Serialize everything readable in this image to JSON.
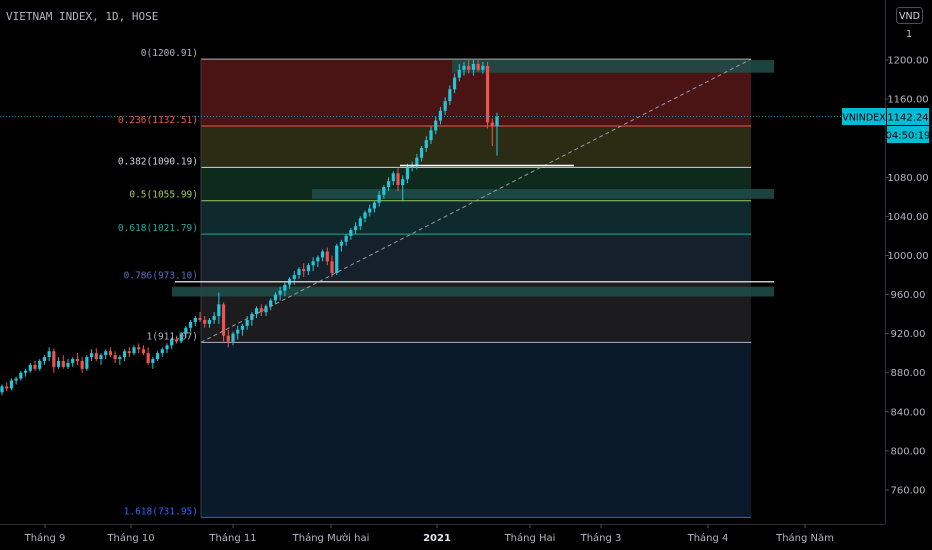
{
  "header": {
    "symbol_title": "VIETNAM INDEX, 1D, HOSE",
    "currency": "VND",
    "scale_mode": "1"
  },
  "badges": {
    "symbol": "VNINDEX",
    "price": "1142.24",
    "countdown": "04:50:19"
  },
  "fib_labels": [
    {
      "text": "0(1200.91)",
      "value": 1200.91,
      "color": "#b2b5be"
    },
    {
      "text": "0.236(1132.51)",
      "value": 1132.51,
      "color": "#ef5350"
    },
    {
      "text": "0.382(1090.19)",
      "value": 1090.19,
      "color": "#d1d4dc"
    },
    {
      "text": "0.5(1055.99)",
      "value": 1055.99,
      "color": "#9ccc65"
    },
    {
      "text": "0.618(1021.79)",
      "value": 1021.79,
      "color": "#26a69a"
    },
    {
      "text": "0.786(973.10)",
      "value": 973.1,
      "color": "#5c6bc0"
    },
    {
      "text": "1(911.07)",
      "value": 911.07,
      "color": "#b2b5be"
    },
    {
      "text": "1.618(731.95)",
      "value": 731.95,
      "color": "#2962ff"
    }
  ],
  "colors": {
    "up": "#26c6da",
    "down": "#ef5350",
    "zone_red": "#4a1414",
    "zone_yellow": "#2c2c14",
    "zone_green": "#0e2a1c",
    "zone_teal": "#0f2a2c",
    "zone_slate": "#15202a",
    "zone_gray": "#1c1c1e",
    "zone_blue": "#0b1a2a",
    "teal_box": "#1e4d4a"
  },
  "chart_data": {
    "type": "candlestick",
    "yaxis_ticks": [
      1200,
      1160,
      1120,
      1080,
      1040,
      1000,
      960,
      920,
      880,
      840,
      800,
      760
    ],
    "ylim": [
      720,
      1225
    ],
    "xaxis_ticks": [
      {
        "label": "Tháng 9",
        "bold": false
      },
      {
        "label": "Tháng 10",
        "bold": false
      },
      {
        "label": "Tháng 11",
        "bold": false
      },
      {
        "label": "Tháng Mười hai",
        "bold": false
      },
      {
        "label": "2021",
        "bold": true
      },
      {
        "label": "Tháng Hai",
        "bold": false
      },
      {
        "label": "Tháng 3",
        "bold": false
      },
      {
        "label": "Tháng 4",
        "bold": false
      },
      {
        "label": "Tháng Năm",
        "bold": false
      }
    ],
    "fib_levels": [
      1200.91,
      1132.51,
      1090.19,
      1055.99,
      1021.79,
      973.1,
      911.07,
      731.95
    ],
    "candles": [
      [
        860,
        868,
        857,
        866
      ],
      [
        866,
        870,
        861,
        864
      ],
      [
        864,
        874,
        862,
        872
      ],
      [
        872,
        876,
        868,
        874
      ],
      [
        874,
        882,
        872,
        880
      ],
      [
        880,
        884,
        876,
        882
      ],
      [
        882,
        890,
        880,
        888
      ],
      [
        888,
        892,
        882,
        884
      ],
      [
        884,
        894,
        882,
        892
      ],
      [
        892,
        898,
        888,
        896
      ],
      [
        896,
        906,
        892,
        902
      ],
      [
        902,
        905,
        880,
        886
      ],
      [
        886,
        896,
        884,
        892
      ],
      [
        892,
        898,
        884,
        886
      ],
      [
        886,
        894,
        884,
        890
      ],
      [
        890,
        896,
        886,
        894
      ],
      [
        894,
        900,
        888,
        892
      ],
      [
        892,
        896,
        880,
        884
      ],
      [
        884,
        898,
        882,
        896
      ],
      [
        896,
        904,
        892,
        900
      ],
      [
        900,
        905,
        892,
        894
      ],
      [
        894,
        900,
        888,
        898
      ],
      [
        898,
        904,
        894,
        902
      ],
      [
        902,
        906,
        896,
        898
      ],
      [
        898,
        902,
        890,
        894
      ],
      [
        894,
        898,
        888,
        896
      ],
      [
        896,
        904,
        892,
        902
      ],
      [
        902,
        906,
        896,
        900
      ],
      [
        900,
        908,
        898,
        906
      ],
      [
        906,
        910,
        900,
        904
      ],
      [
        904,
        908,
        898,
        900
      ],
      [
        900,
        906,
        888,
        890
      ],
      [
        890,
        896,
        884,
        894
      ],
      [
        894,
        902,
        892,
        900
      ],
      [
        900,
        906,
        896,
        904
      ],
      [
        904,
        910,
        900,
        908
      ],
      [
        908,
        916,
        904,
        914
      ],
      [
        914,
        918,
        910,
        912
      ],
      [
        912,
        922,
        910,
        920
      ],
      [
        920,
        928,
        916,
        926
      ],
      [
        926,
        934,
        922,
        932
      ],
      [
        932,
        938,
        928,
        936
      ],
      [
        936,
        942,
        932,
        934
      ],
      [
        934,
        938,
        926,
        930
      ],
      [
        930,
        936,
        926,
        934
      ],
      [
        934,
        942,
        930,
        938
      ],
      [
        938,
        962,
        930,
        950
      ],
      [
        950,
        952,
        912,
        918
      ],
      [
        918,
        924,
        906,
        912
      ],
      [
        912,
        922,
        908,
        920
      ],
      [
        920,
        928,
        914,
        924
      ],
      [
        924,
        930,
        918,
        928
      ],
      [
        928,
        938,
        924,
        934
      ],
      [
        934,
        942,
        928,
        940
      ],
      [
        940,
        948,
        936,
        946
      ],
      [
        946,
        950,
        938,
        942
      ],
      [
        942,
        950,
        938,
        948
      ],
      [
        948,
        956,
        944,
        954
      ],
      [
        954,
        962,
        950,
        960
      ],
      [
        960,
        968,
        954,
        964
      ],
      [
        964,
        972,
        958,
        970
      ],
      [
        970,
        978,
        966,
        976
      ],
      [
        976,
        984,
        970,
        980
      ],
      [
        980,
        988,
        976,
        986
      ],
      [
        986,
        992,
        978,
        984
      ],
      [
        984,
        992,
        980,
        990
      ],
      [
        990,
        998,
        984,
        994
      ],
      [
        994,
        1000,
        988,
        998
      ],
      [
        998,
        1006,
        994,
        1004
      ],
      [
        1004,
        1008,
        990,
        994
      ],
      [
        994,
        1000,
        978,
        982
      ],
      [
        982,
        1012,
        980,
        1010
      ],
      [
        1010,
        1016,
        1004,
        1014
      ],
      [
        1014,
        1022,
        1010,
        1020
      ],
      [
        1020,
        1028,
        1016,
        1026
      ],
      [
        1026,
        1034,
        1022,
        1030
      ],
      [
        1030,
        1040,
        1026,
        1038
      ],
      [
        1038,
        1046,
        1034,
        1044
      ],
      [
        1044,
        1052,
        1040,
        1048
      ],
      [
        1048,
        1056,
        1044,
        1054
      ],
      [
        1054,
        1066,
        1050,
        1062
      ],
      [
        1062,
        1072,
        1058,
        1070
      ],
      [
        1070,
        1080,
        1066,
        1076
      ],
      [
        1076,
        1086,
        1072,
        1084
      ],
      [
        1084,
        1090,
        1066,
        1072
      ],
      [
        1072,
        1082,
        1056,
        1078
      ],
      [
        1078,
        1094,
        1074,
        1090
      ],
      [
        1090,
        1096,
        1086,
        1092
      ],
      [
        1092,
        1104,
        1088,
        1100
      ],
      [
        1100,
        1112,
        1096,
        1110
      ],
      [
        1110,
        1122,
        1106,
        1118
      ],
      [
        1118,
        1132,
        1114,
        1128
      ],
      [
        1128,
        1142,
        1124,
        1138
      ],
      [
        1138,
        1152,
        1134,
        1148
      ],
      [
        1148,
        1162,
        1144,
        1158
      ],
      [
        1158,
        1174,
        1154,
        1170
      ],
      [
        1170,
        1186,
        1166,
        1182
      ],
      [
        1182,
        1196,
        1178,
        1190
      ],
      [
        1190,
        1198,
        1184,
        1194
      ],
      [
        1194,
        1200,
        1186,
        1190
      ],
      [
        1190,
        1200,
        1184,
        1196
      ],
      [
        1196,
        1201,
        1188,
        1190
      ],
      [
        1190,
        1198,
        1186,
        1194
      ],
      [
        1194,
        1198,
        1130,
        1136
      ],
      [
        1136,
        1140,
        1112,
        1132
      ],
      [
        1132,
        1146,
        1102,
        1142
      ]
    ]
  }
}
